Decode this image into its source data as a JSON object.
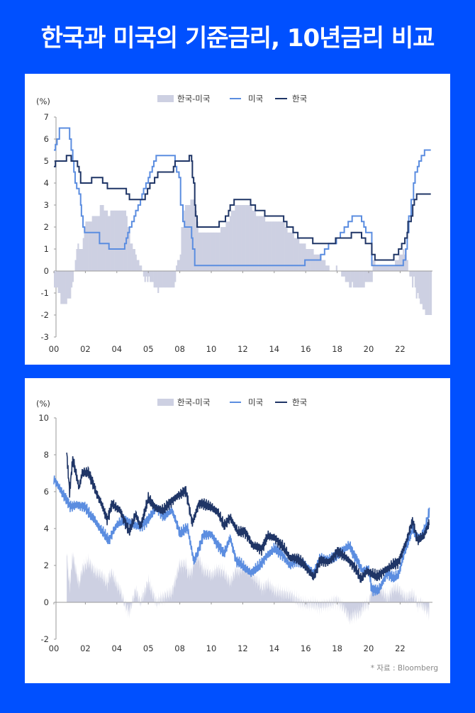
{
  "title": "한국과 미국의 기준금리, 10년금리 비교",
  "colors": {
    "background": "#0050FF",
    "us": "#5B8DE0",
    "kr": "#1F3566",
    "diff": "#CDD0E2",
    "axis": "#999999"
  },
  "source": "* 자료 : Bloomberg",
  "chart_data": [
    {
      "type": "line",
      "title": "기준금리",
      "ylabel": "(%)",
      "ylim": [
        -3,
        7
      ],
      "yticks": [
        "7",
        "6",
        "5",
        "4",
        "3",
        "2",
        "1",
        "0",
        "-1",
        "-2",
        "-3"
      ],
      "xticks": [
        "00",
        "02",
        "04",
        "05",
        "08",
        "10",
        "12",
        "14",
        "16",
        "18",
        "20",
        "22"
      ],
      "legend": [
        "한국-미국",
        "미국",
        "한국"
      ],
      "legend_position": "top-center",
      "series": [
        {
          "name": "미국",
          "kind": "step",
          "points": [
            [
              2000,
              5.5
            ],
            [
              2000.1,
              5.75
            ],
            [
              2000.2,
              6.0
            ],
            [
              2000.35,
              6.5
            ],
            [
              2001.0,
              6.0
            ],
            [
              2001.1,
              5.5
            ],
            [
              2001.2,
              5.0
            ],
            [
              2001.27,
              4.5
            ],
            [
              2001.35,
              4.0
            ],
            [
              2001.45,
              3.75
            ],
            [
              2001.6,
              3.5
            ],
            [
              2001.7,
              3.0
            ],
            [
              2001.75,
              2.5
            ],
            [
              2001.85,
              2.0
            ],
            [
              2001.95,
              1.75
            ],
            [
              2002.9,
              1.25
            ],
            [
              2003.5,
              1.0
            ],
            [
              2004.5,
              1.25
            ],
            [
              2004.6,
              1.5
            ],
            [
              2004.7,
              1.75
            ],
            [
              2004.8,
              2.0
            ],
            [
              2004.95,
              2.25
            ],
            [
              2005.1,
              2.5
            ],
            [
              2005.2,
              2.75
            ],
            [
              2005.35,
              3.0
            ],
            [
              2005.5,
              3.25
            ],
            [
              2005.6,
              3.5
            ],
            [
              2005.7,
              3.75
            ],
            [
              2005.85,
              4.0
            ],
            [
              2006.0,
              4.25
            ],
            [
              2006.1,
              4.5
            ],
            [
              2006.25,
              4.75
            ],
            [
              2006.35,
              5.0
            ],
            [
              2006.5,
              5.25
            ],
            [
              2007.7,
              4.75
            ],
            [
              2007.8,
              4.5
            ],
            [
              2007.95,
              4.25
            ],
            [
              2008.05,
              3.0
            ],
            [
              2008.2,
              2.25
            ],
            [
              2008.3,
              2.0
            ],
            [
              2008.75,
              1.5
            ],
            [
              2008.82,
              1.0
            ],
            [
              2008.95,
              0.25
            ],
            [
              2015.95,
              0.5
            ],
            [
              2016.95,
              0.75
            ],
            [
              2017.2,
              1.0
            ],
            [
              2017.45,
              1.25
            ],
            [
              2017.95,
              1.5
            ],
            [
              2018.2,
              1.75
            ],
            [
              2018.45,
              2.0
            ],
            [
              2018.7,
              2.25
            ],
            [
              2018.95,
              2.5
            ],
            [
              2019.55,
              2.25
            ],
            [
              2019.7,
              2.0
            ],
            [
              2019.82,
              1.75
            ],
            [
              2020.2,
              0.25
            ],
            [
              2022.2,
              0.5
            ],
            [
              2022.35,
              1.0
            ],
            [
              2022.45,
              1.75
            ],
            [
              2022.55,
              2.5
            ],
            [
              2022.7,
              3.25
            ],
            [
              2022.85,
              4.0
            ],
            [
              2022.95,
              4.5
            ],
            [
              2023.1,
              4.75
            ],
            [
              2023.2,
              5.0
            ],
            [
              2023.35,
              5.25
            ],
            [
              2023.55,
              5.5
            ],
            [
              2023.95,
              5.5
            ]
          ]
        },
        {
          "name": "한국",
          "kind": "step",
          "points": [
            [
              2000,
              4.75
            ],
            [
              2000.1,
              5.0
            ],
            [
              2000.8,
              5.25
            ],
            [
              2001.1,
              5.0
            ],
            [
              2001.5,
              4.75
            ],
            [
              2001.6,
              4.5
            ],
            [
              2001.7,
              4.0
            ],
            [
              2002.4,
              4.25
            ],
            [
              2003.1,
              4.0
            ],
            [
              2003.4,
              3.75
            ],
            [
              2004.6,
              3.5
            ],
            [
              2004.8,
              3.25
            ],
            [
              2005.8,
              3.5
            ],
            [
              2005.95,
              3.75
            ],
            [
              2006.1,
              4.0
            ],
            [
              2006.4,
              4.25
            ],
            [
              2006.6,
              4.5
            ],
            [
              2007.6,
              4.75
            ],
            [
              2007.7,
              5.0
            ],
            [
              2008.6,
              5.25
            ],
            [
              2008.75,
              5.0
            ],
            [
              2008.8,
              4.25
            ],
            [
              2008.88,
              4.0
            ],
            [
              2008.95,
              3.0
            ],
            [
              2009.0,
              2.5
            ],
            [
              2009.1,
              2.0
            ],
            [
              2010.5,
              2.25
            ],
            [
              2010.9,
              2.5
            ],
            [
              2011.1,
              2.75
            ],
            [
              2011.2,
              3.0
            ],
            [
              2011.45,
              3.25
            ],
            [
              2012.5,
              3.0
            ],
            [
              2012.8,
              2.75
            ],
            [
              2013.4,
              2.5
            ],
            [
              2014.6,
              2.25
            ],
            [
              2014.8,
              2.0
            ],
            [
              2015.2,
              1.75
            ],
            [
              2015.5,
              1.5
            ],
            [
              2016.45,
              1.25
            ],
            [
              2017.9,
              1.5
            ],
            [
              2018.9,
              1.75
            ],
            [
              2019.55,
              1.5
            ],
            [
              2019.8,
              1.25
            ],
            [
              2020.2,
              0.75
            ],
            [
              2020.4,
              0.5
            ],
            [
              2021.6,
              0.75
            ],
            [
              2021.9,
              1.0
            ],
            [
              2022.1,
              1.25
            ],
            [
              2022.3,
              1.5
            ],
            [
              2022.45,
              1.75
            ],
            [
              2022.5,
              2.25
            ],
            [
              2022.7,
              2.5
            ],
            [
              2022.8,
              3.0
            ],
            [
              2022.9,
              3.25
            ],
            [
              2023.05,
              3.5
            ],
            [
              2023.95,
              3.5
            ]
          ]
        },
        {
          "name": "한국-미국",
          "kind": "bar",
          "derived": "한국 - 미국"
        }
      ]
    },
    {
      "type": "line",
      "title": "10년금리",
      "ylabel": "(%)",
      "ylim": [
        -2,
        10
      ],
      "yticks": [
        "10",
        "8",
        "6",
        "4",
        "2",
        "0",
        "-2"
      ],
      "xticks": [
        "00",
        "02",
        "04",
        "05",
        "08",
        "10",
        "12",
        "14",
        "16",
        "18",
        "20",
        "22"
      ],
      "legend": [
        "한국-미국",
        "미국",
        "한국"
      ],
      "legend_position": "top-center",
      "series": [
        {
          "name": "미국",
          "kind": "line",
          "points": [
            [
              2000,
              6.7
            ],
            [
              2000.5,
              6.0
            ],
            [
              2001,
              5.2
            ],
            [
              2001.5,
              5.3
            ],
            [
              2002,
              5.1
            ],
            [
              2002.5,
              4.6
            ],
            [
              2003,
              3.9
            ],
            [
              2003.5,
              3.4
            ],
            [
              2004,
              4.2
            ],
            [
              2004.5,
              4.5
            ],
            [
              2005,
              4.2
            ],
            [
              2005.5,
              4.1
            ],
            [
              2006,
              4.5
            ],
            [
              2006.5,
              5.1
            ],
            [
              2007,
              4.7
            ],
            [
              2007.5,
              5.0
            ],
            [
              2008,
              3.8
            ],
            [
              2008.5,
              4.0
            ],
            [
              2008.9,
              2.2
            ],
            [
              2009.5,
              3.6
            ],
            [
              2010,
              3.7
            ],
            [
              2010.5,
              3.0
            ],
            [
              2010.8,
              2.6
            ],
            [
              2011.2,
              3.5
            ],
            [
              2011.6,
              2.2
            ],
            [
              2012,
              2.0
            ],
            [
              2012.5,
              1.6
            ],
            [
              2013,
              1.9
            ],
            [
              2013.5,
              2.5
            ],
            [
              2014,
              2.9
            ],
            [
              2014.5,
              2.6
            ],
            [
              2015,
              2.0
            ],
            [
              2015.5,
              2.3
            ],
            [
              2016,
              2.0
            ],
            [
              2016.5,
              1.5
            ],
            [
              2016.9,
              2.4
            ],
            [
              2017.5,
              2.3
            ],
            [
              2018,
              2.6
            ],
            [
              2018.8,
              3.1
            ],
            [
              2019,
              2.7
            ],
            [
              2019.6,
              1.7
            ],
            [
              2020,
              1.8
            ],
            [
              2020.2,
              0.7
            ],
            [
              2020.6,
              0.6
            ],
            [
              2021.2,
              1.6
            ],
            [
              2021.6,
              1.3
            ],
            [
              2021.9,
              1.5
            ],
            [
              2022.3,
              2.8
            ],
            [
              2022.8,
              4.0
            ],
            [
              2023,
              3.6
            ],
            [
              2023.3,
              3.5
            ],
            [
              2023.6,
              4.1
            ],
            [
              2023.85,
              4.9
            ]
          ]
        },
        {
          "name": "한국",
          "kind": "line",
          "points": [
            [
              2000.8,
              8.3
            ],
            [
              2001,
              6.0
            ],
            [
              2001.2,
              7.8
            ],
            [
              2001.6,
              6.2
            ],
            [
              2001.8,
              7.0
            ],
            [
              2002.2,
              7.1
            ],
            [
              2002.7,
              5.9
            ],
            [
              2003.0,
              5.4
            ],
            [
              2003.4,
              4.5
            ],
            [
              2003.7,
              5.3
            ],
            [
              2004.2,
              5.0
            ],
            [
              2004.8,
              3.8
            ],
            [
              2005.2,
              4.8
            ],
            [
              2005.5,
              4.1
            ],
            [
              2006,
              5.6
            ],
            [
              2006.5,
              5.1
            ],
            [
              2007,
              5.0
            ],
            [
              2007.5,
              5.5
            ],
            [
              2007.9,
              5.8
            ],
            [
              2008.4,
              6.0
            ],
            [
              2008.8,
              4.3
            ],
            [
              2009.2,
              5.3
            ],
            [
              2009.8,
              5.3
            ],
            [
              2010.4,
              4.9
            ],
            [
              2010.8,
              4.2
            ],
            [
              2011.2,
              4.6
            ],
            [
              2011.7,
              3.8
            ],
            [
              2012.1,
              3.9
            ],
            [
              2012.6,
              3.1
            ],
            [
              2013.2,
              2.9
            ],
            [
              2013.6,
              3.6
            ],
            [
              2014,
              3.5
            ],
            [
              2014.5,
              3.1
            ],
            [
              2015,
              2.4
            ],
            [
              2015.5,
              2.4
            ],
            [
              2016,
              1.9
            ],
            [
              2016.5,
              1.4
            ],
            [
              2016.9,
              2.2
            ],
            [
              2017.5,
              2.2
            ],
            [
              2018,
              2.7
            ],
            [
              2018.5,
              2.5
            ],
            [
              2019,
              2.0
            ],
            [
              2019.5,
              1.3
            ],
            [
              2019.9,
              1.7
            ],
            [
              2020.5,
              1.4
            ],
            [
              2021,
              1.7
            ],
            [
              2021.5,
              2.0
            ],
            [
              2021.9,
              2.2
            ],
            [
              2022.4,
              3.3
            ],
            [
              2022.8,
              4.4
            ],
            [
              2023.1,
              3.4
            ],
            [
              2023.5,
              3.6
            ],
            [
              2023.85,
              4.3
            ]
          ]
        },
        {
          "name": "한국-미국",
          "kind": "area",
          "derived": "한국 - 미국"
        }
      ]
    }
  ]
}
